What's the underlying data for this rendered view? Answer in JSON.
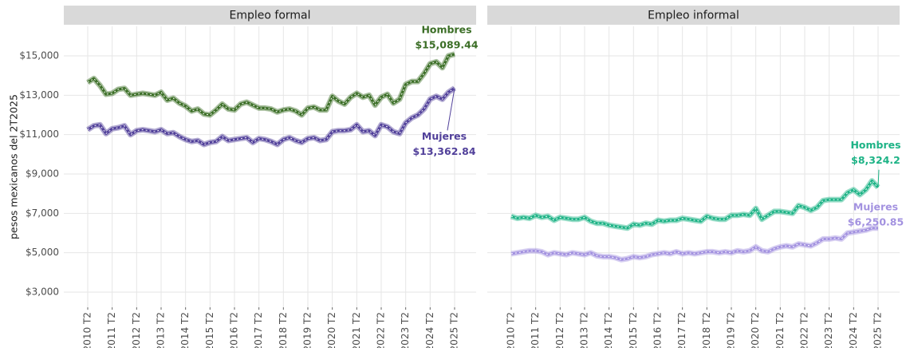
{
  "chart_data": [
    {
      "type": "line",
      "title": "Empleo formal",
      "ylabel": "pesos mexicanos del 2T2025",
      "categories": [
        "2010 T2",
        null,
        null,
        null,
        "2011 T2",
        null,
        null,
        null,
        "2012 T2",
        null,
        null,
        null,
        "2013 T2",
        null,
        null,
        null,
        "2014 T2",
        null,
        null,
        null,
        "2015 T2",
        null,
        null,
        null,
        "2016 T2",
        null,
        null,
        null,
        "2017 T2",
        null,
        null,
        null,
        "2018 T2",
        null,
        null,
        null,
        "2019 T2",
        null,
        null,
        null,
        "2020 T2",
        null,
        null,
        null,
        "2021 T2",
        null,
        null,
        null,
        "2022 T2",
        null,
        null,
        null,
        "2023 T2",
        null,
        null,
        null,
        "2024 T2",
        null,
        null,
        null,
        "2025 T2"
      ],
      "ylim": [
        2230,
        16500
      ],
      "yticks": [
        {
          "value": 3000,
          "label": "$3,000"
        },
        {
          "value": 5000,
          "label": "$5,000"
        },
        {
          "value": 7000,
          "label": "$7,000"
        },
        {
          "value": 9000,
          "label": "$9,000"
        },
        {
          "value": 11000,
          "label": "$11,000"
        },
        {
          "value": 13000,
          "label": "$13,000"
        },
        {
          "value": 15000,
          "label": "$15,000"
        }
      ],
      "grid": true,
      "series": [
        {
          "name": "Hombres",
          "color": "#3b6e26",
          "values": [
            13650,
            13850,
            13500,
            13050,
            13100,
            13300,
            13350,
            13000,
            13050,
            13100,
            13050,
            13000,
            13150,
            12750,
            12850,
            12600,
            12450,
            12200,
            12300,
            12050,
            12000,
            12250,
            12550,
            12300,
            12250,
            12550,
            12650,
            12500,
            12350,
            12350,
            12300,
            12150,
            12250,
            12300,
            12200,
            12000,
            12350,
            12400,
            12250,
            12250,
            12950,
            12700,
            12550,
            12900,
            13100,
            12900,
            13000,
            12500,
            12900,
            13050,
            12600,
            12800,
            13550,
            13700,
            13700,
            14100,
            14600,
            14700,
            14400,
            15000,
            15089.44
          ],
          "value_labels": [
            null,
            null,
            null,
            null,
            null,
            null,
            null,
            null,
            null,
            null,
            null,
            null,
            null,
            null,
            null,
            null,
            null,
            null,
            null,
            null,
            null,
            null,
            null,
            null,
            null,
            null,
            null,
            null,
            null,
            null,
            null,
            null,
            null,
            null,
            null,
            null,
            null,
            null,
            null,
            null,
            null,
            null,
            null,
            null,
            null,
            null,
            null,
            null,
            null,
            null,
            null,
            null,
            null,
            null,
            null,
            null,
            null,
            null,
            null,
            null,
            "$15,089.44"
          ]
        },
        {
          "name": "Mujeres",
          "color": "#51409a",
          "values": [
            11250,
            11450,
            11500,
            11050,
            11300,
            11350,
            11450,
            11000,
            11200,
            11250,
            11200,
            11150,
            11250,
            11050,
            11100,
            10900,
            10750,
            10650,
            10700,
            10500,
            10600,
            10650,
            10900,
            10700,
            10750,
            10800,
            10850,
            10600,
            10800,
            10750,
            10650,
            10500,
            10750,
            10850,
            10700,
            10600,
            10800,
            10850,
            10700,
            10750,
            11150,
            11200,
            11200,
            11250,
            11500,
            11150,
            11200,
            10950,
            11500,
            11400,
            11150,
            11050,
            11600,
            11850,
            12000,
            12300,
            12800,
            12950,
            12800,
            13150,
            13362.84
          ],
          "value_labels": [
            null,
            null,
            null,
            null,
            null,
            null,
            null,
            null,
            null,
            null,
            null,
            null,
            null,
            null,
            null,
            null,
            null,
            null,
            null,
            null,
            null,
            null,
            null,
            null,
            null,
            null,
            null,
            null,
            null,
            null,
            null,
            null,
            null,
            null,
            null,
            null,
            null,
            null,
            null,
            null,
            null,
            null,
            null,
            null,
            null,
            null,
            null,
            null,
            null,
            null,
            null,
            null,
            null,
            null,
            null,
            null,
            null,
            null,
            null,
            null,
            "$13,362.84"
          ]
        }
      ]
    },
    {
      "type": "line",
      "title": "Empleo informal",
      "categories": [
        "2010 T2",
        null,
        null,
        null,
        "2011 T2",
        null,
        null,
        null,
        "2012 T2",
        null,
        null,
        null,
        "2013 T2",
        null,
        null,
        null,
        "2014 T2",
        null,
        null,
        null,
        "2015 T2",
        null,
        null,
        null,
        "2016 T2",
        null,
        null,
        null,
        "2017 T2",
        null,
        null,
        null,
        "2018 T2",
        null,
        null,
        null,
        "2019 T2",
        null,
        null,
        null,
        "2020 T2",
        null,
        null,
        null,
        "2021 T2",
        null,
        null,
        null,
        "2022 T2",
        null,
        null,
        null,
        "2023 T2",
        null,
        null,
        null,
        "2024 T2",
        null,
        null,
        null,
        "2025 T2"
      ],
      "ylim": [
        2230,
        16500
      ],
      "yticks": [
        3000,
        5000,
        7000,
        9000,
        11000,
        13000,
        15000
      ],
      "grid": true,
      "series": [
        {
          "name": "Hombres",
          "color": "#1db386",
          "values": [
            6850,
            6750,
            6800,
            6750,
            6900,
            6800,
            6850,
            6650,
            6800,
            6750,
            6700,
            6700,
            6800,
            6600,
            6500,
            6500,
            6400,
            6350,
            6300,
            6250,
            6450,
            6400,
            6500,
            6450,
            6650,
            6600,
            6650,
            6650,
            6750,
            6700,
            6650,
            6600,
            6850,
            6750,
            6700,
            6700,
            6900,
            6900,
            6950,
            6900,
            7250,
            6700,
            6900,
            7100,
            7100,
            7050,
            7000,
            7400,
            7300,
            7150,
            7300,
            7650,
            7700,
            7700,
            7700,
            8050,
            8200,
            7950,
            8200,
            8650,
            8324.2
          ],
          "value_labels": [
            null,
            null,
            null,
            null,
            null,
            null,
            null,
            null,
            null,
            null,
            null,
            null,
            null,
            null,
            null,
            null,
            null,
            null,
            null,
            null,
            null,
            null,
            null,
            null,
            null,
            null,
            null,
            null,
            null,
            null,
            null,
            null,
            null,
            null,
            null,
            null,
            null,
            null,
            null,
            null,
            null,
            null,
            null,
            null,
            null,
            null,
            null,
            null,
            null,
            null,
            null,
            null,
            null,
            null,
            null,
            null,
            null,
            null,
            null,
            null,
            "$8,324.2"
          ]
        },
        {
          "name": "Mujeres",
          "color": "#a392e0",
          "values": [
            4950,
            5000,
            5050,
            5100,
            5100,
            5050,
            4900,
            5000,
            4950,
            4900,
            5000,
            4950,
            4900,
            5000,
            4850,
            4800,
            4800,
            4750,
            4650,
            4700,
            4800,
            4750,
            4800,
            4900,
            4950,
            5000,
            4950,
            5050,
            4950,
            5000,
            4950,
            5000,
            5050,
            5050,
            5000,
            5050,
            5000,
            5100,
            5050,
            5100,
            5300,
            5100,
            5050,
            5200,
            5300,
            5350,
            5300,
            5450,
            5400,
            5350,
            5500,
            5700,
            5700,
            5750,
            5700,
            6000,
            6050,
            6100,
            6150,
            6250,
            6250.85
          ],
          "value_labels": [
            null,
            null,
            null,
            null,
            null,
            null,
            null,
            null,
            null,
            null,
            null,
            null,
            null,
            null,
            null,
            null,
            null,
            null,
            null,
            null,
            null,
            null,
            null,
            null,
            null,
            null,
            null,
            null,
            null,
            null,
            null,
            null,
            null,
            null,
            null,
            null,
            null,
            null,
            null,
            null,
            null,
            null,
            null,
            null,
            null,
            null,
            null,
            null,
            null,
            null,
            null,
            null,
            null,
            null,
            null,
            null,
            null,
            null,
            null,
            null,
            "$6,250.85"
          ]
        }
      ]
    }
  ]
}
